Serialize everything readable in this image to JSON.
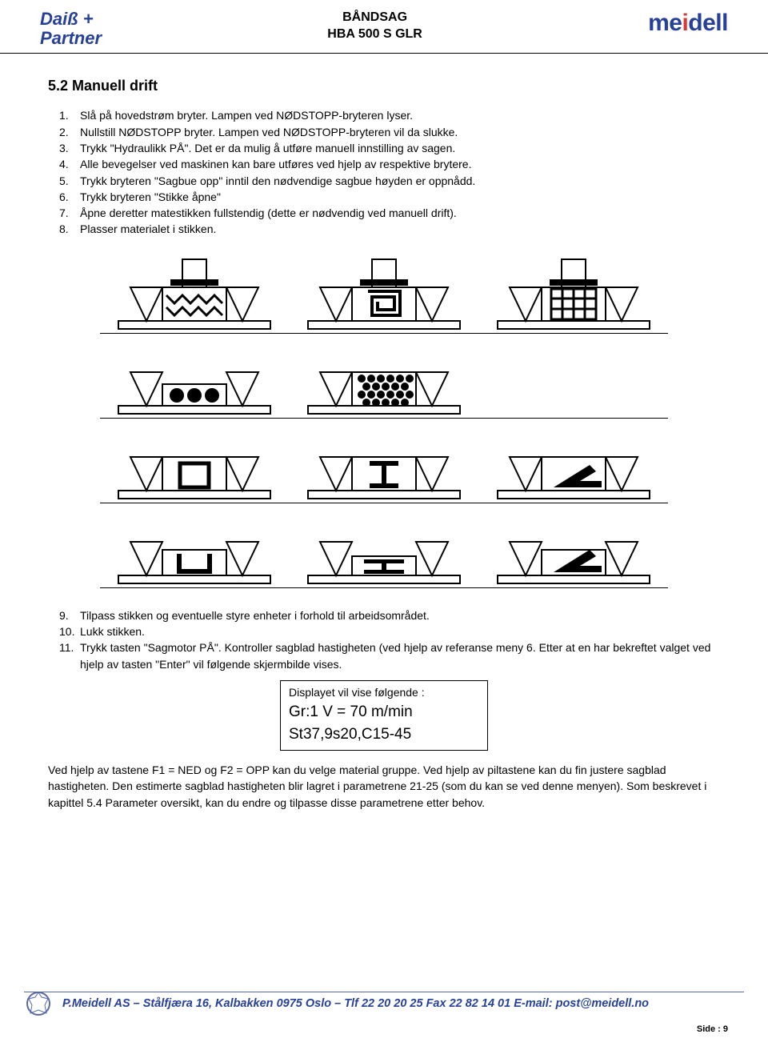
{
  "header": {
    "logo_left_line1": "Daiß +",
    "logo_left_line2": "Partner",
    "center_line1": "BÅNDSAG",
    "center_line2": "HBA 500 S GLR",
    "logo_right_pre": "me",
    "logo_right_mid": "i",
    "logo_right_post": "dell"
  },
  "section_title": "5.2 Manuell drift",
  "list_a": [
    {
      "n": "1.",
      "t": "Slå på hovedstrøm bryter. Lampen ved NØDSTOPP-bryteren lyser."
    },
    {
      "n": "2.",
      "t": "Nullstill NØDSTOPP bryter. Lampen ved NØDSTOPP-bryteren vil da slukke."
    },
    {
      "n": "3.",
      "t": "Trykk \"Hydraulikk PÅ\". Det er da mulig å utføre manuell innstilling av sagen."
    },
    {
      "n": "4.",
      "t": "Alle bevegelser ved maskinen kan bare utføres ved hjelp av respektive brytere."
    },
    {
      "n": "5.",
      "t": "Trykk bryteren \"Sagbue opp\" inntil den nødvendige sagbue høyden er oppnådd."
    },
    {
      "n": "6.",
      "t": "Trykk bryteren \"Stikke åpne\""
    },
    {
      "n": "7.",
      "t": "Åpne deretter matestikken fullstendig (dette er nødvendig ved manuell drift)."
    },
    {
      "n": "8.",
      "t": "Plasser materialet i stikken."
    }
  ],
  "list_b": [
    {
      "n": "9.",
      "t": "Tilpass stikken og eventuelle styre enheter i forhold til arbeidsområdet."
    },
    {
      "n": "10.",
      "t": "Lukk stikken."
    },
    {
      "n": "11.",
      "t": "Trykk tasten \"Sagmotor PÅ\". Kontroller sagblad hastigheten (ved hjelp av referanse meny 6. Etter at en har bekreftet valget ved hjelp av tasten \"Enter\" vil følgende skjermbilde vises."
    }
  ],
  "display": {
    "line1": "Displayet vil vise følgende :",
    "line2": "Gr:1 V = 70 m/min",
    "line3": "St37,9s20,C15-45"
  },
  "para_end": "Ved hjelp av tastene F1 = NED og F2 = OPP kan du velge material gruppe. Ved hjelp av piltastene kan du fin justere sagblad hastigheten. Den estimerte sagblad hastigheten blir lagret i parametrene 21-25 (som du kan se ved denne menyen). Som beskrevet i kapittel 5.4 Parameter oversikt, kan du endre og tilpasse disse parametrene etter behov.",
  "footer": {
    "text": "P.Meidell AS – Stålfjæra 16, Kalbakken 0975 Oslo – Tlf 22 20 20 25  Fax 22 82 14 01  E-mail: post@meidell.no"
  },
  "page_num": "Side : 9",
  "colors": {
    "brand": "#27419a",
    "accent": "#d93838",
    "text": "#000000"
  }
}
